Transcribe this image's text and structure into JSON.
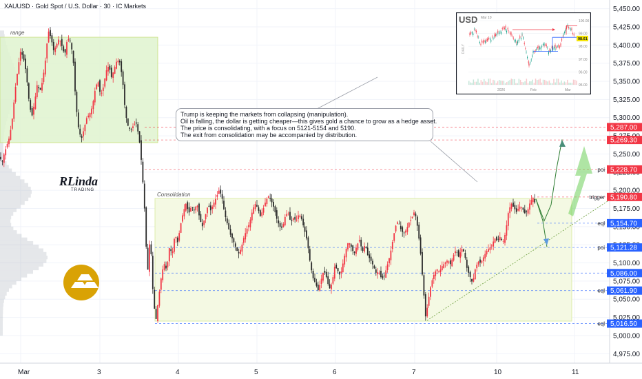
{
  "header": {
    "title": "XAUUSD · Gold Spot / U.S. Dollar · 30 · IC Markets"
  },
  "zones": {
    "range_label": "range",
    "consolidation_label": "Consolidation"
  },
  "callout": {
    "lines": [
      "Trump is keeping the markets from collapsing (manipulation).",
      "Oil is falling, the dollar is getting cheaper—this gives gold a chance to grow as a hedge asset.",
      "The price is consolidating, with a focus on 5121-5154 and 5190.",
      "The exit from consolidation may be accompanied by distribution."
    ]
  },
  "logo": {
    "letters": "RLinda",
    "sub": "TRADING"
  },
  "inset": {
    "title": "USD",
    "date_label": "Mar 10",
    "side_label": "DAILY",
    "ticks": [
      "100.00",
      "99.00",
      "98.00",
      "97.00",
      "96.00",
      "95.00"
    ],
    "x_labels": [
      "2026",
      "Feb",
      "Mar"
    ],
    "price_tag": "98.61",
    "colors": {
      "tag": "#f5e400",
      "arrow": "#f23645",
      "level": "#2962ff"
    }
  },
  "level_tags": [
    {
      "value": "5,287.00",
      "color": "#f23645",
      "side": ""
    },
    {
      "value": "5,269.30",
      "color": "#f23645",
      "side": ""
    },
    {
      "value": "5,228.70",
      "color": "#f23645",
      "side": "poi"
    },
    {
      "value": "5,190.80",
      "color": "#f23645",
      "side": "trigger"
    },
    {
      "value": "5,154.70",
      "color": "#2962ff",
      "side": "eql"
    },
    {
      "value": "5,121.28",
      "color": "#2962ff",
      "side": "poi"
    },
    {
      "value": "5,086.00",
      "color": "#2962ff",
      "side": ""
    },
    {
      "value": "5,061.90",
      "color": "#2962ff",
      "side": "eql"
    },
    {
      "value": "5,016.50",
      "color": "#2962ff",
      "side": "eql"
    }
  ],
  "chart_data": {
    "type": "candlestick",
    "title": "XAUUSD · Gold Spot / U.S. Dollar · 30 · IC Markets",
    "timeframe": "30",
    "x_tick_labels": [
      "Mar",
      "3",
      "4",
      "5",
      "6",
      "7",
      "10",
      "11"
    ],
    "y_tick_labels": [
      "5,450.00",
      "5,425.00",
      "5,400.00",
      "5,375.00",
      "5,350.00",
      "5,325.00",
      "5,300.00",
      "5,275.00",
      "5,250.00",
      "5,225.00",
      "5,200.00",
      "5,175.00",
      "5,150.00",
      "5,125.00",
      "5,100.00",
      "5,075.00",
      "5,050.00",
      "5,025.00",
      "5,000.00",
      "4,975.00"
    ],
    "y_range": [
      4962,
      5462
    ],
    "grid": true,
    "colors": {
      "up": "#f23645",
      "down": "#2b2b2b",
      "range_zone": "#dff3cf",
      "consolidation_zone": "#f3f9e2"
    },
    "range_zone": [
      5269.3,
      5418
    ],
    "consolidation_zone": [
      5016.5,
      5190.8
    ],
    "levels": [
      5287.0,
      5269.3,
      5228.7,
      5190.8,
      5154.7,
      5121.28,
      5086.0,
      5061.9,
      5016.5
    ],
    "price_path": [
      [
        0,
        5245
      ],
      [
        3,
        5238
      ],
      [
        6,
        5250
      ],
      [
        10,
        5262
      ],
      [
        14,
        5274
      ],
      [
        18,
        5300
      ],
      [
        22,
        5338
      ],
      [
        26,
        5368
      ],
      [
        30,
        5392
      ],
      [
        34,
        5382
      ],
      [
        38,
        5362
      ],
      [
        42,
        5324
      ],
      [
        46,
        5300
      ],
      [
        50,
        5320
      ],
      [
        54,
        5346
      ],
      [
        58,
        5336
      ],
      [
        62,
        5352
      ],
      [
        66,
        5380
      ],
      [
        70,
        5420
      ],
      [
        74,
        5410
      ],
      [
        78,
        5392
      ],
      [
        82,
        5400
      ],
      [
        86,
        5410
      ],
      [
        90,
        5398
      ],
      [
        94,
        5386
      ],
      [
        98,
        5410
      ],
      [
        102,
        5405
      ],
      [
        106,
        5385
      ],
      [
        110,
        5320
      ],
      [
        114,
        5285
      ],
      [
        118,
        5270
      ],
      [
        122,
        5285
      ],
      [
        126,
        5300
      ],
      [
        130,
        5305
      ],
      [
        134,
        5315
      ],
      [
        138,
        5338
      ],
      [
        142,
        5352
      ],
      [
        146,
        5330
      ],
      [
        150,
        5342
      ],
      [
        154,
        5364
      ],
      [
        158,
        5372
      ],
      [
        162,
        5355
      ],
      [
        166,
        5368
      ],
      [
        170,
        5380
      ],
      [
        174,
        5376
      ],
      [
        178,
        5352
      ],
      [
        182,
        5306
      ],
      [
        186,
        5288
      ],
      [
        190,
        5282
      ],
      [
        194,
        5290
      ],
      [
        198,
        5292
      ],
      [
        202,
        5272
      ],
      [
        206,
        5232
      ],
      [
        210,
        5172
      ],
      [
        214,
        5082
      ],
      [
        218,
        5140
      ],
      [
        222,
        5060
      ],
      [
        226,
        5018
      ],
      [
        230,
        5050
      ],
      [
        234,
        5080
      ],
      [
        238,
        5100
      ],
      [
        242,
        5090
      ],
      [
        246,
        5122
      ],
      [
        250,
        5112
      ],
      [
        254,
        5140
      ],
      [
        258,
        5128
      ],
      [
        262,
        5152
      ],
      [
        266,
        5170
      ],
      [
        270,
        5182
      ],
      [
        274,
        5168
      ],
      [
        278,
        5178
      ],
      [
        282,
        5172
      ],
      [
        286,
        5182
      ],
      [
        290,
        5160
      ],
      [
        294,
        5150
      ],
      [
        298,
        5165
      ],
      [
        302,
        5180
      ],
      [
        306,
        5172
      ],
      [
        310,
        5182
      ],
      [
        314,
        5190
      ],
      [
        318,
        5200
      ],
      [
        322,
        5192
      ],
      [
        326,
        5168
      ],
      [
        330,
        5154
      ],
      [
        334,
        5140
      ],
      [
        338,
        5132
      ],
      [
        342,
        5122
      ],
      [
        346,
        5112
      ],
      [
        350,
        5120
      ],
      [
        354,
        5135
      ],
      [
        358,
        5146
      ],
      [
        362,
        5154
      ],
      [
        366,
        5170
      ],
      [
        370,
        5182
      ],
      [
        374,
        5176
      ],
      [
        378,
        5164
      ],
      [
        382,
        5174
      ],
      [
        386,
        5186
      ],
      [
        390,
        5192
      ],
      [
        394,
        5185
      ],
      [
        398,
        5175
      ],
      [
        402,
        5160
      ],
      [
        406,
        5150
      ],
      [
        410,
        5148
      ],
      [
        414,
        5164
      ],
      [
        418,
        5170
      ],
      [
        422,
        5156
      ],
      [
        426,
        5162
      ],
      [
        430,
        5158
      ],
      [
        434,
        5168
      ],
      [
        438,
        5160
      ],
      [
        442,
        5145
      ],
      [
        446,
        5130
      ],
      [
        450,
        5102
      ],
      [
        454,
        5080
      ],
      [
        458,
        5072
      ],
      [
        462,
        5062
      ],
      [
        466,
        5076
      ],
      [
        470,
        5090
      ],
      [
        474,
        5080
      ],
      [
        478,
        5064
      ],
      [
        482,
        5072
      ],
      [
        486,
        5096
      ],
      [
        490,
        5090
      ],
      [
        494,
        5082
      ],
      [
        498,
        5100
      ],
      [
        502,
        5118
      ],
      [
        506,
        5130
      ],
      [
        510,
        5122
      ],
      [
        514,
        5112
      ],
      [
        518,
        5124
      ],
      [
        522,
        5132
      ],
      [
        526,
        5115
      ],
      [
        530,
        5126
      ],
      [
        534,
        5110
      ],
      [
        538,
        5104
      ],
      [
        542,
        5096
      ],
      [
        546,
        5086
      ],
      [
        550,
        5088
      ],
      [
        554,
        5078
      ],
      [
        558,
        5082
      ],
      [
        562,
        5096
      ],
      [
        566,
        5110
      ],
      [
        570,
        5130
      ],
      [
        574,
        5150
      ],
      [
        578,
        5158
      ],
      [
        582,
        5146
      ],
      [
        586,
        5140
      ],
      [
        590,
        5146
      ],
      [
        594,
        5156
      ],
      [
        598,
        5162
      ],
      [
        602,
        5172
      ],
      [
        606,
        5150
      ],
      [
        610,
        5120
      ],
      [
        614,
        5072
      ],
      [
        618,
        5024
      ],
      [
        622,
        5050
      ],
      [
        626,
        5072
      ],
      [
        630,
        5084
      ],
      [
        634,
        5092
      ],
      [
        638,
        5088
      ],
      [
        642,
        5096
      ],
      [
        646,
        5100
      ],
      [
        650,
        5104
      ],
      [
        654,
        5098
      ],
      [
        658,
        5110
      ],
      [
        662,
        5118
      ],
      [
        666,
        5108
      ],
      [
        670,
        5120
      ],
      [
        674,
        5115
      ],
      [
        678,
        5092
      ],
      [
        682,
        5082
      ],
      [
        686,
        5072
      ],
      [
        690,
        5092
      ],
      [
        694,
        5102
      ],
      [
        698,
        5100
      ],
      [
        702,
        5108
      ],
      [
        706,
        5116
      ],
      [
        710,
        5120
      ],
      [
        714,
        5124
      ],
      [
        718,
        5134
      ],
      [
        722,
        5130
      ],
      [
        726,
        5136
      ],
      [
        730,
        5128
      ],
      [
        734,
        5142
      ],
      [
        738,
        5170
      ],
      [
        742,
        5182
      ],
      [
        746,
        5176
      ],
      [
        750,
        5170
      ],
      [
        754,
        5178
      ],
      [
        758,
        5176
      ],
      [
        762,
        5168
      ],
      [
        766,
        5172
      ],
      [
        770,
        5185
      ],
      [
        774,
        5190
      ],
      [
        778,
        5178
      ]
    ],
    "projection_up": [
      [
        778,
        5188
      ],
      [
        790,
        5158
      ],
      [
        800,
        5180
      ],
      [
        808,
        5230
      ],
      [
        816,
        5270
      ]
    ],
    "projection_down": [
      [
        778,
        5188
      ],
      [
        788,
        5158
      ],
      [
        794,
        5122
      ]
    ]
  }
}
